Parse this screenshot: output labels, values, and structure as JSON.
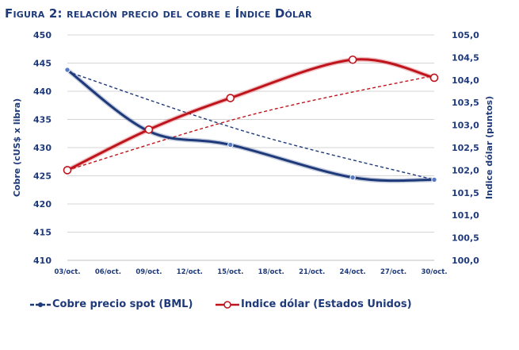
{
  "chart_data": {
    "type": "line",
    "title": "Figura 2: relación precio del cobre e Índice Dólar",
    "x_ticks": [
      "03/oct.",
      "06/oct.",
      "09/oct.",
      "12/oct.",
      "15/oct.",
      "18/oct.",
      "21/oct.",
      "24/oct.",
      "27/oct.",
      "30/oct."
    ],
    "x_range": [
      3,
      30
    ],
    "ylabel_left": "Cobre (cUS$ x libra)",
    "ylabel_right": "Indice dólar (puntos)",
    "ylim_left": [
      410,
      450
    ],
    "ylim_right": [
      100.0,
      105.0
    ],
    "yticks_left": [
      "410",
      "415",
      "420",
      "425",
      "430",
      "435",
      "440",
      "445",
      "450"
    ],
    "yticks_right": [
      "100,0",
      "100,5",
      "101,0",
      "101,5",
      "102,0",
      "102,5",
      "103,0",
      "103,5",
      "104,0",
      "104,5",
      "105,0"
    ],
    "series": [
      {
        "name": "Cobre precio spot (BML)",
        "axis": "left",
        "color": "#1f3a7a",
        "marker": "filled-circle",
        "x": [
          3,
          9,
          15,
          24,
          30
        ],
        "y": [
          443.8,
          432.9,
          430.5,
          424.7,
          424.3
        ],
        "trend": {
          "color": "#1f3a7a",
          "dashed": true,
          "start": 443.5,
          "end": 424.3
        }
      },
      {
        "name": "Indice dólar (Estados Unidos)",
        "axis": "right",
        "color": "#c0141c",
        "marker": "hollow-circle",
        "x": [
          3,
          9,
          15,
          24,
          30
        ],
        "y": [
          102.0,
          102.9,
          103.6,
          104.45,
          104.05
        ],
        "trend": {
          "color": "#c0141c",
          "dashed": true,
          "start": 102.0,
          "end": 104.1
        }
      }
    ],
    "legend_position": "bottom"
  }
}
